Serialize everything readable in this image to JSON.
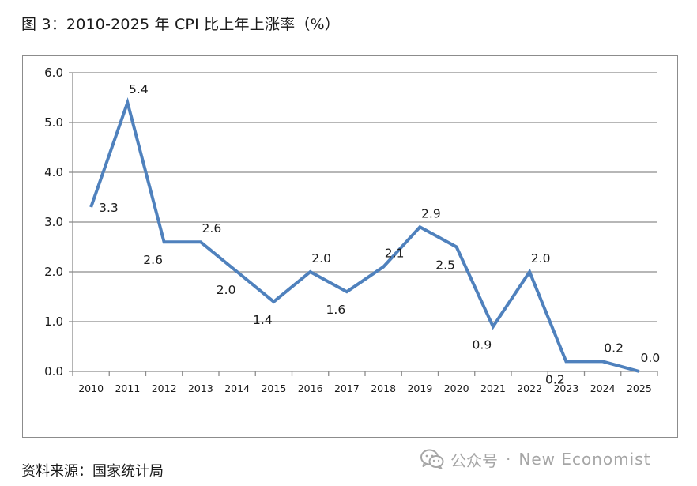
{
  "figure": {
    "title": "图 3：2010-2025 年 CPI 比上年上涨率（%）",
    "source": "资料来源：国家统计局"
  },
  "watermark": {
    "account": "公众号",
    "separator": "·",
    "brand": "New Economist",
    "icon": "wechat-icon"
  },
  "colors": {
    "line": "#4f81bd",
    "grid": "#8c8c8c",
    "text": "#1a1a1a",
    "watermark": "#a6a6a6"
  },
  "chart_data": {
    "type": "line",
    "title": "图 3：2010-2025 年 CPI 比上年上涨率（%）",
    "xlabel": "",
    "ylabel": "",
    "categories": [
      "2010",
      "2011",
      "2012",
      "2013",
      "2014",
      "2015",
      "2016",
      "2017",
      "2018",
      "2019",
      "2020",
      "2021",
      "2022",
      "2023",
      "2024",
      "2025"
    ],
    "series": [
      {
        "name": "CPI 比上年上涨率",
        "values": [
          3.3,
          5.4,
          2.6,
          2.6,
          2.0,
          1.4,
          2.0,
          1.6,
          2.1,
          2.9,
          2.5,
          0.9,
          2.0,
          0.2,
          0.2,
          0.0
        ]
      }
    ],
    "data_labels": [
      "3.3",
      "5.4",
      "2.6",
      "2.6",
      "2.0",
      "1.4",
      "2.0",
      "1.6",
      "2.1",
      "2.9",
      "2.5",
      "0.9",
      "2.0",
      "0.2",
      "0.2",
      "0.0"
    ],
    "ylim": [
      0,
      6
    ],
    "yticks": [
      0,
      1,
      2,
      3,
      4,
      5,
      6
    ],
    "ytick_labels": [
      "0.0",
      "1.0",
      "2.0",
      "3.0",
      "4.0",
      "5.0",
      "6.0"
    ],
    "grid": true,
    "legend": "none"
  }
}
